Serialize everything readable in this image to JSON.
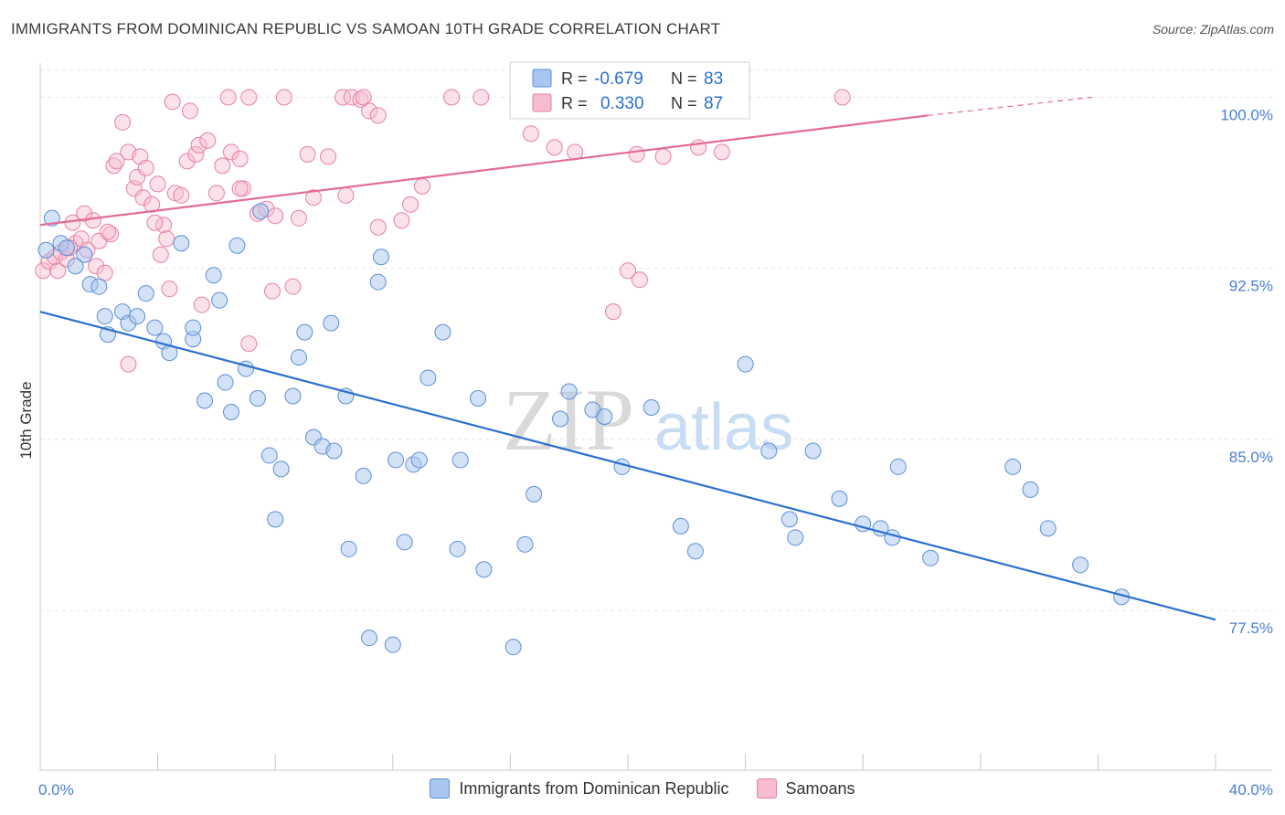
{
  "header": {
    "title": "IMMIGRANTS FROM DOMINICAN REPUBLIC VS SAMOAN 10TH GRADE CORRELATION CHART",
    "source": "Source: ZipAtlas.com"
  },
  "watermark": {
    "zip": "ZIP",
    "atlas": "atlas"
  },
  "stats": {
    "blue": {
      "r_label": "R =",
      "r_value": "-0.679",
      "n_label": "N =",
      "n_value": "83"
    },
    "pink": {
      "r_label": "R =",
      "r_value": "0.330",
      "n_label": "N =",
      "n_value": "87"
    }
  },
  "colors": {
    "blue_fill": "#a9c6f0",
    "blue_stroke": "#5b8fd6",
    "blue_line": "#2b6fcf",
    "pink_fill": "#f6bcd0",
    "pink_stroke": "#e77fa2",
    "pink_line": "#e26b97",
    "tick_text": "#4a7fd0",
    "grid": "#e3e3e3"
  },
  "chart_data": {
    "type": "scatter",
    "title": "IMMIGRANTS FROM DOMINICAN REPUBLIC VS SAMOAN 10TH GRADE CORRELATION CHART",
    "xlabel": "",
    "ylabel": "10th Grade",
    "xlim": [
      0,
      40
    ],
    "ylim": [
      70.5,
      101.5
    ],
    "x_tick_labels": [
      "0.0%",
      "40.0%"
    ],
    "y_ticks": [
      77.5,
      85.0,
      92.5,
      100.0
    ],
    "y_tick_labels": [
      "77.5%",
      "85.0%",
      "92.5%",
      "100.0%"
    ],
    "grid": true,
    "legend_position": "bottom-center",
    "series": [
      {
        "name": "Immigrants from Dominican Republic",
        "color": "blue",
        "r": -0.679,
        "n": 83,
        "trend": {
          "x0": 0,
          "y0": 90.6,
          "x1": 40,
          "y1": 77.1
        },
        "points": [
          [
            0.4,
            94.7
          ],
          [
            0.7,
            93.6
          ],
          [
            0.9,
            93.4
          ],
          [
            1.5,
            93.1
          ],
          [
            1.2,
            92.6
          ],
          [
            1.7,
            91.8
          ],
          [
            2.0,
            91.7
          ],
          [
            2.2,
            90.4
          ],
          [
            2.8,
            90.6
          ],
          [
            2.3,
            89.6
          ],
          [
            3.0,
            90.1
          ],
          [
            3.3,
            90.4
          ],
          [
            3.6,
            91.4
          ],
          [
            3.9,
            89.9
          ],
          [
            4.2,
            89.3
          ],
          [
            4.4,
            88.8
          ],
          [
            4.8,
            93.6
          ],
          [
            5.2,
            89.4
          ],
          [
            5.2,
            89.9
          ],
          [
            5.6,
            86.7
          ],
          [
            5.9,
            92.2
          ],
          [
            6.1,
            91.1
          ],
          [
            6.3,
            87.5
          ],
          [
            6.5,
            86.2
          ],
          [
            6.7,
            93.5
          ],
          [
            7.0,
            88.1
          ],
          [
            7.4,
            86.8
          ],
          [
            7.5,
            95.0
          ],
          [
            7.8,
            84.3
          ],
          [
            8.2,
            83.7
          ],
          [
            8.0,
            81.5
          ],
          [
            8.6,
            86.9
          ],
          [
            8.8,
            88.6
          ],
          [
            9.0,
            89.7
          ],
          [
            9.3,
            85.1
          ],
          [
            9.6,
            84.7
          ],
          [
            9.9,
            90.1
          ],
          [
            10.0,
            84.5
          ],
          [
            10.4,
            86.9
          ],
          [
            10.5,
            80.2
          ],
          [
            11.0,
            83.4
          ],
          [
            11.2,
            76.3
          ],
          [
            11.5,
            91.9
          ],
          [
            11.6,
            93.0
          ],
          [
            12.0,
            76.0
          ],
          [
            12.1,
            84.1
          ],
          [
            12.4,
            80.5
          ],
          [
            12.7,
            83.9
          ],
          [
            12.9,
            84.1
          ],
          [
            13.2,
            87.7
          ],
          [
            13.7,
            89.7
          ],
          [
            14.2,
            80.2
          ],
          [
            14.3,
            84.1
          ],
          [
            14.9,
            86.8
          ],
          [
            15.1,
            79.3
          ],
          [
            16.1,
            75.9
          ],
          [
            16.5,
            80.4
          ],
          [
            16.8,
            82.6
          ],
          [
            17.7,
            85.9
          ],
          [
            18.0,
            87.1
          ],
          [
            18.8,
            86.3
          ],
          [
            19.2,
            86.0
          ],
          [
            19.8,
            83.8
          ],
          [
            20.8,
            86.4
          ],
          [
            21.8,
            81.2
          ],
          [
            22.3,
            80.1
          ],
          [
            24.0,
            88.3
          ],
          [
            24.8,
            84.5
          ],
          [
            25.5,
            81.5
          ],
          [
            25.7,
            80.7
          ],
          [
            26.3,
            84.5
          ],
          [
            27.2,
            82.4
          ],
          [
            28.0,
            81.3
          ],
          [
            28.6,
            81.1
          ],
          [
            29.0,
            80.7
          ],
          [
            29.2,
            83.8
          ],
          [
            30.3,
            79.8
          ],
          [
            33.1,
            83.8
          ],
          [
            33.7,
            82.8
          ],
          [
            34.3,
            81.1
          ],
          [
            35.4,
            79.5
          ],
          [
            36.8,
            78.1
          ],
          [
            0.2,
            93.3
          ]
        ]
      },
      {
        "name": "Samoans",
        "color": "pink",
        "r": 0.33,
        "n": 87,
        "trend": {
          "x0": 0,
          "y0": 94.4,
          "x1": 30.2,
          "y1": 99.2
        },
        "trend_dashed": {
          "x0": 30.2,
          "y0": 99.2,
          "x1": 35.8,
          "y1": 100.0
        },
        "points": [
          [
            0.1,
            92.4
          ],
          [
            0.3,
            92.8
          ],
          [
            0.5,
            93.0
          ],
          [
            0.6,
            92.4
          ],
          [
            0.7,
            93.2
          ],
          [
            0.9,
            92.9
          ],
          [
            1.1,
            94.5
          ],
          [
            1.2,
            93.6
          ],
          [
            1.4,
            93.8
          ],
          [
            1.5,
            94.9
          ],
          [
            1.6,
            93.3
          ],
          [
            1.8,
            94.6
          ],
          [
            1.9,
            92.6
          ],
          [
            2.0,
            93.7
          ],
          [
            2.2,
            92.3
          ],
          [
            2.4,
            94.0
          ],
          [
            2.5,
            97.0
          ],
          [
            2.6,
            97.2
          ],
          [
            2.8,
            98.9
          ],
          [
            3.0,
            97.6
          ],
          [
            3.0,
            88.3
          ],
          [
            3.2,
            96.0
          ],
          [
            3.3,
            96.5
          ],
          [
            3.4,
            97.4
          ],
          [
            3.5,
            95.6
          ],
          [
            3.6,
            96.9
          ],
          [
            3.8,
            95.3
          ],
          [
            4.0,
            96.2
          ],
          [
            4.1,
            93.1
          ],
          [
            4.2,
            94.4
          ],
          [
            4.3,
            93.8
          ],
          [
            4.4,
            91.6
          ],
          [
            4.6,
            95.8
          ],
          [
            4.8,
            95.7
          ],
          [
            4.5,
            99.8
          ],
          [
            5.0,
            97.2
          ],
          [
            5.1,
            99.4
          ],
          [
            5.3,
            97.5
          ],
          [
            5.4,
            97.9
          ],
          [
            5.5,
            90.9
          ],
          [
            5.7,
            98.1
          ],
          [
            6.0,
            95.8
          ],
          [
            6.2,
            97.0
          ],
          [
            6.4,
            100.0
          ],
          [
            6.5,
            97.6
          ],
          [
            6.8,
            97.3
          ],
          [
            6.9,
            96.0
          ],
          [
            7.1,
            100.0
          ],
          [
            7.1,
            89.2
          ],
          [
            7.4,
            94.9
          ],
          [
            7.7,
            95.1
          ],
          [
            7.9,
            91.5
          ],
          [
            8.0,
            94.8
          ],
          [
            8.3,
            100.0
          ],
          [
            8.6,
            91.7
          ],
          [
            8.8,
            94.7
          ],
          [
            9.1,
            97.5
          ],
          [
            9.3,
            95.6
          ],
          [
            9.8,
            97.4
          ],
          [
            10.3,
            100.0
          ],
          [
            10.4,
            95.7
          ],
          [
            10.6,
            100.0
          ],
          [
            10.9,
            99.9
          ],
          [
            11.0,
            100.0
          ],
          [
            11.2,
            99.4
          ],
          [
            11.5,
            99.2
          ],
          [
            11.5,
            94.3
          ],
          [
            12.3,
            94.6
          ],
          [
            12.6,
            95.3
          ],
          [
            13.0,
            96.1
          ],
          [
            14.0,
            100.0
          ],
          [
            15.0,
            100.0
          ],
          [
            16.7,
            98.4
          ],
          [
            17.5,
            97.8
          ],
          [
            18.2,
            97.6
          ],
          [
            19.5,
            90.6
          ],
          [
            20.0,
            92.4
          ],
          [
            20.3,
            97.5
          ],
          [
            20.4,
            92.0
          ],
          [
            21.2,
            97.4
          ],
          [
            22.4,
            97.8
          ],
          [
            23.2,
            97.6
          ],
          [
            27.3,
            100.0
          ],
          [
            6.8,
            96.0
          ],
          [
            2.3,
            94.1
          ],
          [
            3.9,
            94.5
          ],
          [
            1.0,
            93.4
          ]
        ]
      }
    ]
  },
  "legend": {
    "blue_label": "Immigrants from Dominican Republic",
    "pink_label": "Samoans"
  }
}
